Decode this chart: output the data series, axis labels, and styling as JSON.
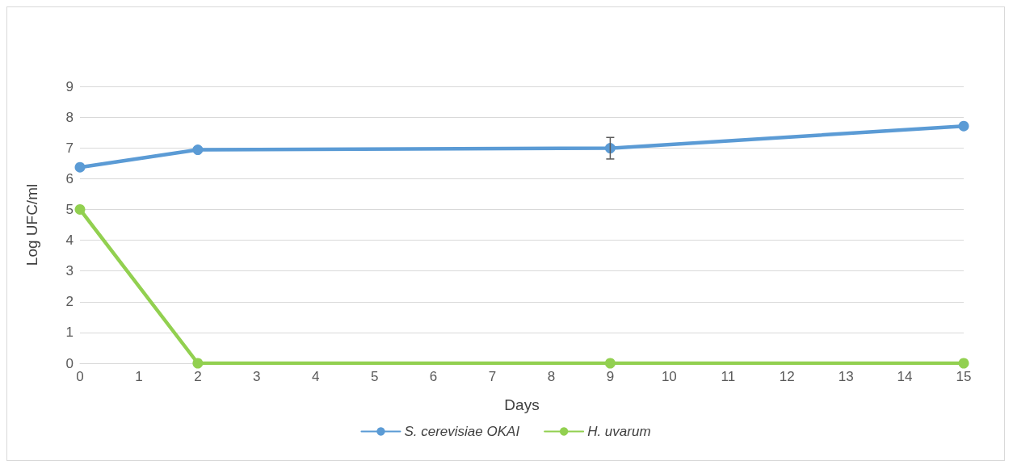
{
  "chart_data": {
    "type": "line",
    "xlabel": "Days",
    "ylabel": "Log UFC/ml",
    "x": [
      0,
      2,
      9,
      15
    ],
    "series": [
      {
        "name": "S. cerevisiae OKAI",
        "color": "#5b9bd5",
        "values": [
          6.37,
          6.94,
          6.99,
          7.71
        ],
        "errors": [
          null,
          null,
          0.35,
          null
        ]
      },
      {
        "name": "H. uvarum",
        "color": "#92d050",
        "values": [
          5,
          0,
          0,
          0
        ]
      }
    ],
    "xlim": [
      0,
      15
    ],
    "xticks": [
      0,
      1,
      2,
      3,
      4,
      5,
      6,
      7,
      8,
      9,
      10,
      11,
      12,
      13,
      14,
      15
    ],
    "ylim": [
      0,
      9
    ],
    "yticks": [
      0,
      1,
      2,
      3,
      4,
      5,
      6,
      7,
      8,
      9
    ],
    "grid": "y",
    "legend": "bottom",
    "marker": "circle",
    "line_style": "solid"
  }
}
